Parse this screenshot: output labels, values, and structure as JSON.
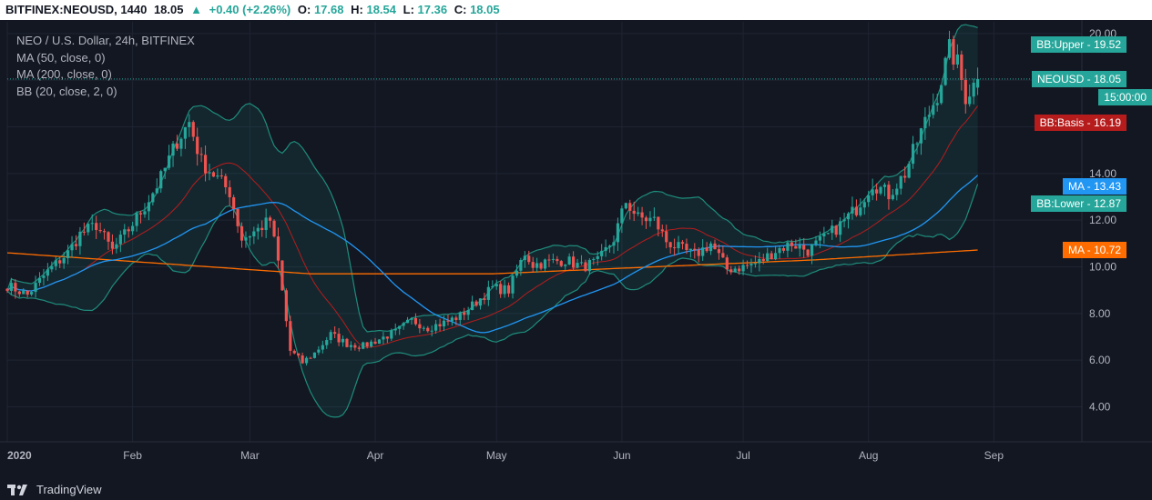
{
  "header": {
    "symbol": "BITFINEX:NEOUSD, 1440",
    "last": "18.05",
    "arrow": "▲",
    "change": "+0.40 (+2.26%)",
    "o_label": "O:",
    "o": "17.68",
    "h_label": "H:",
    "h": "18.54",
    "l_label": "L:",
    "l": "17.36",
    "c_label": "C:",
    "c": "18.05"
  },
  "legend": {
    "title": "NEO / U.S. Dollar, 24h, BITFINEX",
    "ma50": "MA (50, close, 0)",
    "ma200": "MA (200, close, 0)",
    "bb": "BB (20, close, 2, 0)"
  },
  "tags": {
    "bb_upper": "BB:Upper - 19.52",
    "neousd": "NEOUSD - 18.05",
    "countdown": "15:00:00",
    "bb_basis": "BB:Basis - 16.19",
    "ma50": "MA - 13.43",
    "bb_lower": "BB:Lower - 12.87",
    "ma200": "MA - 10.72"
  },
  "footer": {
    "brand": "TradingView"
  },
  "colors": {
    "up": "#26a69a",
    "down": "#ef5350",
    "ma50": "#2196f3",
    "ma200": "#ff6d00",
    "bb_band": "#1e8c7c",
    "bb_basis": "#b71c1c",
    "price_tag": "#26a69a",
    "basis_tag": "#b71c1c"
  },
  "chart_data": {
    "type": "candlestick",
    "ylim": [
      2.5,
      20.5
    ],
    "y_ticks": [
      "4.00",
      "6.00",
      "8.00",
      "10.00",
      "12.00",
      "14.00",
      "20.00"
    ],
    "x_ticks": [
      {
        "label": "2020",
        "day": 0
      },
      {
        "label": "Feb",
        "day": 31
      },
      {
        "label": "Mar",
        "day": 60
      },
      {
        "label": "Apr",
        "day": 91
      },
      {
        "label": "May",
        "day": 121
      },
      {
        "label": "Jun",
        "day": 152
      },
      {
        "label": "Jul",
        "day": 182
      },
      {
        "label": "Aug",
        "day": 213
      },
      {
        "label": "Sep",
        "day": 244
      }
    ],
    "last_day": 240,
    "close_anchors": [
      [
        0,
        9.2
      ],
      [
        5,
        8.8
      ],
      [
        10,
        9.8
      ],
      [
        15,
        10.6
      ],
      [
        18,
        11.4
      ],
      [
        22,
        11.8
      ],
      [
        26,
        10.7
      ],
      [
        30,
        11.6
      ],
      [
        34,
        12.6
      ],
      [
        38,
        13.8
      ],
      [
        42,
        15.4
      ],
      [
        45,
        16.2
      ],
      [
        48,
        14.5
      ],
      [
        52,
        13.8
      ],
      [
        55,
        13.2
      ],
      [
        58,
        11.2
      ],
      [
        62,
        11.6
      ],
      [
        65,
        12.0
      ],
      [
        67,
        10.2
      ],
      [
        70,
        6.4
      ],
      [
        73,
        5.9
      ],
      [
        76,
        6.3
      ],
      [
        80,
        7.1
      ],
      [
        84,
        6.7
      ],
      [
        88,
        6.6
      ],
      [
        92,
        6.9
      ],
      [
        96,
        7.2
      ],
      [
        100,
        7.7
      ],
      [
        104,
        7.4
      ],
      [
        108,
        7.6
      ],
      [
        112,
        7.9
      ],
      [
        116,
        8.5
      ],
      [
        120,
        9.1
      ],
      [
        124,
        9.0
      ],
      [
        128,
        10.6
      ],
      [
        130,
        10.1
      ],
      [
        134,
        10.2
      ],
      [
        138,
        10.3
      ],
      [
        142,
        10.0
      ],
      [
        146,
        10.2
      ],
      [
        150,
        11.2
      ],
      [
        153,
        12.8
      ],
      [
        156,
        12.1
      ],
      [
        160,
        12.0
      ],
      [
        163,
        11.1
      ],
      [
        166,
        10.8
      ],
      [
        170,
        10.5
      ],
      [
        174,
        11.0
      ],
      [
        178,
        9.9
      ],
      [
        182,
        10.0
      ],
      [
        186,
        10.2
      ],
      [
        190,
        10.7
      ],
      [
        194,
        11.0
      ],
      [
        198,
        10.7
      ],
      [
        202,
        11.2
      ],
      [
        206,
        11.8
      ],
      [
        210,
        12.5
      ],
      [
        214,
        13.6
      ],
      [
        218,
        13.1
      ],
      [
        222,
        14.0
      ],
      [
        226,
        15.8
      ],
      [
        230,
        17.4
      ],
      [
        233,
        19.3
      ],
      [
        235,
        18.7
      ],
      [
        237,
        17.3
      ],
      [
        240,
        18.05
      ]
    ],
    "last_bar": {
      "open": 17.68,
      "high": 18.54,
      "low": 17.36,
      "close": 18.05
    },
    "price_line": 18.05,
    "series": [
      {
        "name": "MA (50, close, 0)",
        "last": 13.43
      },
      {
        "name": "MA (200, close, 0)",
        "last": 10.72
      },
      {
        "name": "BB:Upper",
        "last": 19.52
      },
      {
        "name": "BB:Basis",
        "last": 16.19
      },
      {
        "name": "BB:Lower",
        "last": 12.87
      }
    ]
  }
}
